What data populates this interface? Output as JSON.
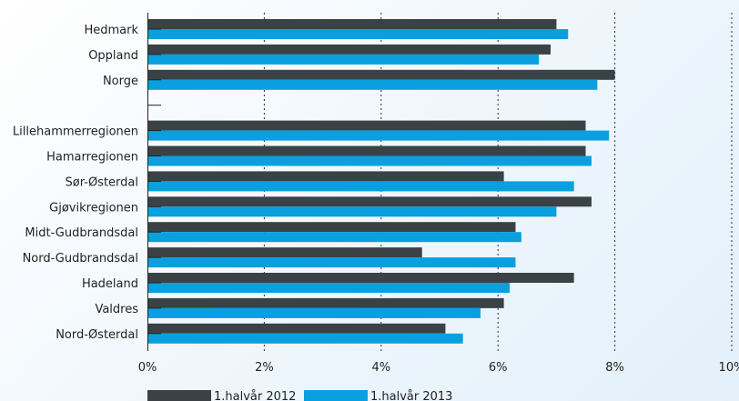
{
  "chart_data": {
    "type": "bar",
    "orientation": "horizontal",
    "categories": [
      "Hedmark",
      "Oppland",
      "Norge",
      "",
      "Lillehammerregionen",
      "Hamarregionen",
      "Sør-Østerdal",
      "Gjøvikregionen",
      "Midt-Gudbrandsdal",
      "Nord-Gudbrandsdal",
      "Hadeland",
      "Valdres",
      "Nord-Østerdal"
    ],
    "series": [
      {
        "name": "1.halvår 2012",
        "color": "#3a4246",
        "values": [
          7.0,
          6.9,
          8.0,
          null,
          7.5,
          7.5,
          6.1,
          7.6,
          6.3,
          4.7,
          7.3,
          6.1,
          5.1
        ]
      },
      {
        "name": "1.halvår 2013",
        "color": "#0aa0e0",
        "values": [
          7.2,
          6.7,
          7.7,
          null,
          7.9,
          7.6,
          7.3,
          7.0,
          6.4,
          6.3,
          6.2,
          5.7,
          5.4
        ]
      }
    ],
    "xlim": [
      0,
      10
    ],
    "xticks": [
      "0%",
      "2%",
      "4%",
      "6%",
      "8%",
      "10%"
    ],
    "grid": "vertical-dotted",
    "legend": "bottom-left"
  }
}
